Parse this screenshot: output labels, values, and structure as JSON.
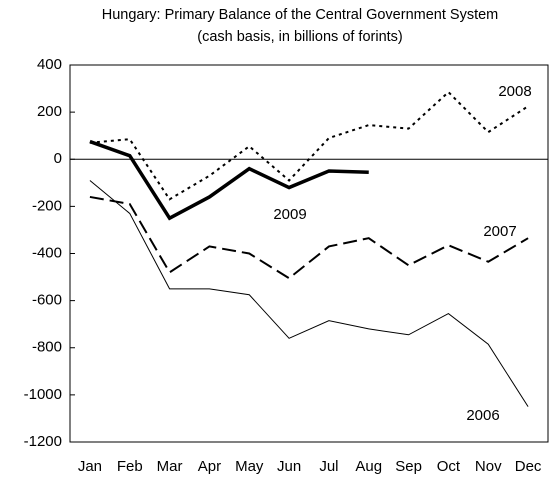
{
  "chart_data": {
    "type": "line",
    "title": "Hungary: Primary Balance of the Central Government System",
    "subtitle": "(cash basis, in billions of forints)",
    "categories": [
      "Jan",
      "Feb",
      "Mar",
      "Apr",
      "May",
      "Jun",
      "Jul",
      "Aug",
      "Sep",
      "Oct",
      "Nov",
      "Dec"
    ],
    "series": [
      {
        "name": "2006",
        "color": "#000000",
        "style": "thin",
        "values": [
          -90,
          -230,
          -550,
          -550,
          -575,
          -760,
          -685,
          -720,
          -745,
          -655,
          -785,
          -1050
        ]
      },
      {
        "name": "2007",
        "color": "#000000",
        "style": "dashed",
        "values": [
          -160,
          -190,
          -480,
          -370,
          -400,
          -505,
          -370,
          -335,
          -450,
          -365,
          -435,
          -335
        ]
      },
      {
        "name": "2008",
        "color": "#000000",
        "style": "dotted",
        "values": [
          70,
          85,
          -170,
          -70,
          55,
          -90,
          90,
          145,
          130,
          285,
          115,
          225
        ]
      },
      {
        "name": "2009",
        "color": "#000000",
        "style": "thick",
        "values": [
          75,
          15,
          -250,
          -160,
          -40,
          -120,
          -50,
          -55,
          null,
          null,
          null,
          null
        ]
      }
    ],
    "ylim": [
      -1200,
      400
    ],
    "yticks": [
      -1200,
      -1000,
      -800,
      -600,
      -400,
      -200,
      0,
      200,
      400
    ]
  }
}
